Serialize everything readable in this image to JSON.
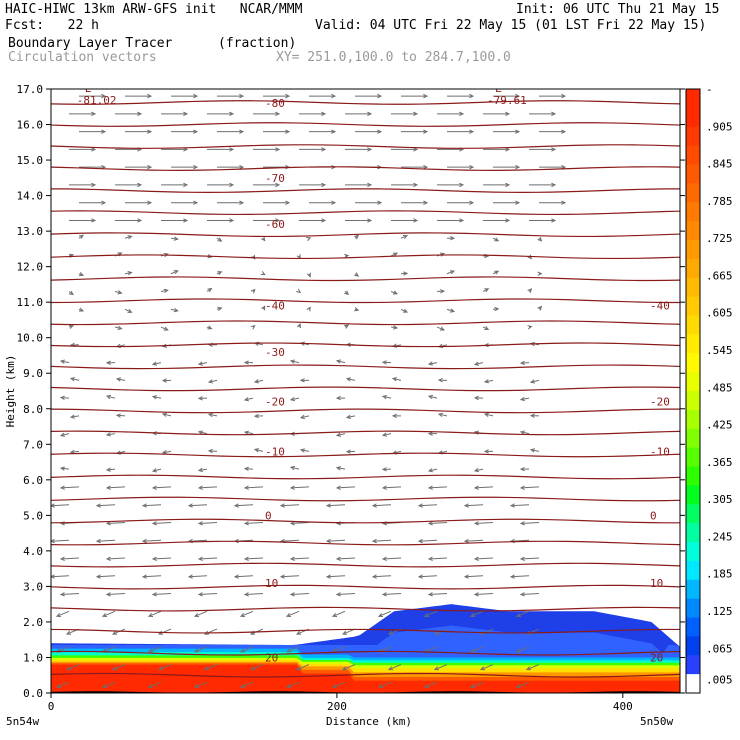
{
  "header": {
    "line1_left": "HAIC-HIWC 13km ARW-GFS init   NCAR/MMM",
    "line1_right": "Init: 06 UTC Thu 21 May 15",
    "line2_left": "Fcst:   22 h",
    "line2_right": "Valid: 04 UTC Fri 22 May 15 (01 LST Fri 22 May 15)",
    "field_name": "Boundary Layer Tracer",
    "field_units": "(fraction)",
    "vector_label": "Circulation vectors",
    "xsec_label": "XY= 251.0,100.0 to 284.7,100.0"
  },
  "chart_data": {
    "type": "heatmap",
    "ylabel": "Height (km)",
    "xlabel": "Distance (km)",
    "x_ticks": [
      0,
      200,
      400
    ],
    "x_end_labels": [
      "5n54w",
      "5n50w"
    ],
    "xlim": [
      0,
      440
    ],
    "ylim": [
      0,
      17
    ],
    "y_ticks": [
      "0.0",
      "1.0",
      "2.0",
      "3.0",
      "4.0",
      "5.0",
      "6.0",
      "7.0",
      "8.0",
      "9.0",
      "10.0",
      "11.0",
      "12.0",
      "13.0",
      "14.0",
      "15.0",
      "16.0",
      "17.0"
    ],
    "colorbar": {
      "labels": [
        "-",
        ".905",
        ".845",
        ".785",
        ".725",
        ".665",
        ".605",
        ".545",
        ".485",
        ".425",
        ".365",
        ".305",
        ".245",
        ".185",
        ".125",
        ".065",
        ".005"
      ],
      "colors": [
        "#ff2a00",
        "#ff2a00",
        "#ff3a00",
        "#ff4a00",
        "#ff5a00",
        "#ff6a00",
        "#ff7a00",
        "#ff8a00",
        "#ff9a00",
        "#ffaa00",
        "#ffba00",
        "#ffca00",
        "#ffda00",
        "#ffea00",
        "#fffa00",
        "#e8ff00",
        "#ccff00",
        "#a8ff00",
        "#80ff00",
        "#55ff00",
        "#2eff00",
        "#00ff20",
        "#00ff60",
        "#00ffa0",
        "#00ffd8",
        "#00e8ff",
        "#00b8ff",
        "#0088ff",
        "#0060ff",
        "#0040ee",
        "#2a40ff",
        "#ffffff"
      ]
    },
    "temperature_contours": [
      {
        "label": "20",
        "z": 1.0
      },
      {
        "label": "10",
        "z": 3.1
      },
      {
        "label": "0",
        "z": 5.0
      },
      {
        "label": "-10",
        "z": 6.8
      },
      {
        "label": "-20",
        "z": 8.2
      },
      {
        "label": "-30",
        "z": 9.6
      },
      {
        "label": "-40",
        "z": 10.9
      },
      {
        "label": "-60",
        "z": 13.2
      },
      {
        "label": "-70",
        "z": 14.5
      },
      {
        "label": "-80",
        "z": 16.6
      }
    ],
    "extrema": [
      {
        "label": "L",
        "value": "-81.02",
        "x": 18,
        "z": 16.8
      },
      {
        "label": "L",
        "value": "-79.61",
        "x": 305,
        "z": 16.8
      }
    ],
    "boundary_layer": [
      {
        "x": 0,
        "top": 1.4
      },
      {
        "x": 170,
        "top": 1.35
      },
      {
        "x": 215,
        "top": 1.6
      },
      {
        "x": 240,
        "top": 2.3
      },
      {
        "x": 280,
        "top": 2.5
      },
      {
        "x": 320,
        "top": 2.3
      },
      {
        "x": 380,
        "top": 2.3
      },
      {
        "x": 420,
        "top": 2.0
      },
      {
        "x": 440,
        "top": 1.3
      }
    ]
  }
}
